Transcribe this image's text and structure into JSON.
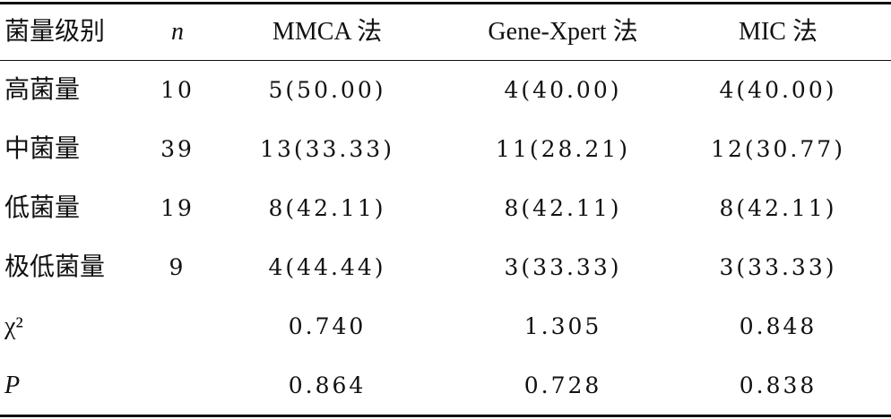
{
  "table": {
    "header": [
      "菌量级别",
      "n",
      "MMCA 法",
      "Gene-Xpert 法",
      "MIC 法"
    ],
    "rows": [
      [
        "高菌量",
        "10",
        "5(50.00)",
        "4(40.00)",
        "4(40.00)"
      ],
      [
        "中菌量",
        "39",
        "13(33.33)",
        "11(28.21)",
        "12(30.77)"
      ],
      [
        "低菌量",
        "19",
        "8(42.11)",
        "8(42.11)",
        "8(42.11)"
      ],
      [
        "极低菌量",
        "9",
        "4(44.44)",
        "3(33.33)",
        "3(33.33)"
      ]
    ],
    "stats": [
      [
        "χ²",
        "0.740",
        "1.305",
        "0.848"
      ],
      [
        "P",
        "0.864",
        "0.728",
        "0.838"
      ]
    ]
  }
}
